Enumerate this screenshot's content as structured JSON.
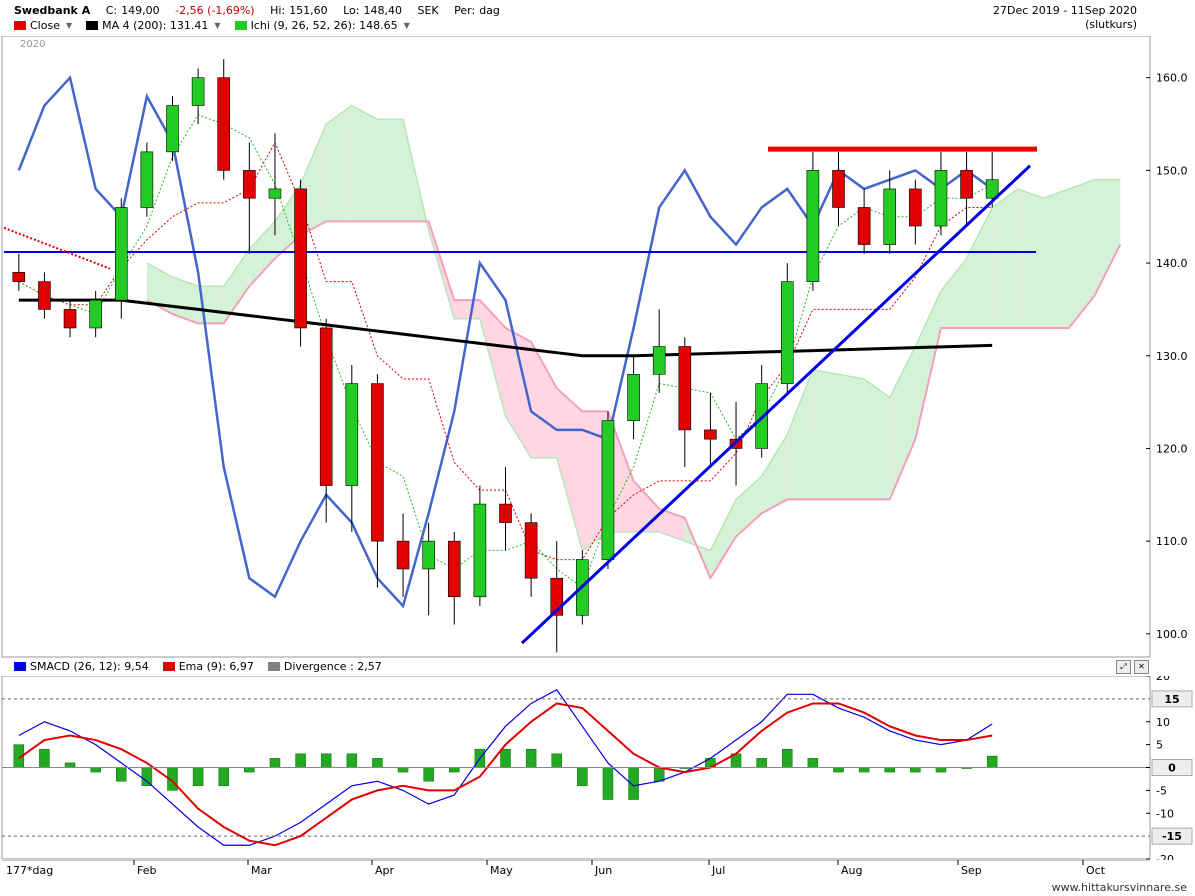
{
  "header": {
    "symbol": "Swedbank A",
    "close_label": "C:",
    "close": "149,00",
    "change": "-2,56 (-1,69%)",
    "hi_label": "Hi:",
    "hi": "151,60",
    "lo_label": "Lo:",
    "lo": "148,40",
    "currency": "SEK",
    "period_label": "Per:",
    "period": "dag",
    "date_range": "27Dec 2019 - 11Sep 2020",
    "price_type": "(slutkurs)",
    "year_label": "2020"
  },
  "legend": [
    {
      "label": "Close",
      "color": "#e00000",
      "dropdown": true
    },
    {
      "label": "MA 4 (200): 131.41",
      "color": "#000000",
      "dropdown": true
    },
    {
      "label": "Ichi (9, 26, 52, 26): 148.65",
      "color": "#22cc22",
      "dropdown": true
    }
  ],
  "macd_legend": [
    {
      "label": "SMACD (26, 12): 9,54",
      "color": "#0000e0"
    },
    {
      "label": "Ema (9): 6,97",
      "color": "#e00000"
    },
    {
      "label": "Divergence : 2,57",
      "color": "#808080"
    }
  ],
  "x_axis": {
    "period_label": "177*dag",
    "months": [
      "Feb",
      "Mar",
      "Apr",
      "May",
      "Jun",
      "Jul",
      "Aug",
      "Sep",
      "Oct"
    ]
  },
  "footer": {
    "watermark": "www.hittakursvinnare.se"
  },
  "colors": {
    "up": "#22cc22",
    "down": "#e00000",
    "ma": "#000000",
    "rsi_line": "#4466cc",
    "cloud_green": "#d6f2d6",
    "cloud_pink": "#ffd6e2",
    "trend": "#0000e0"
  },
  "chart_data": [
    {
      "type": "candlestick",
      "title": "Swedbank A",
      "y_ticks": [
        100.0,
        110.0,
        120.0,
        130.0,
        140.0,
        150.0,
        160.0
      ],
      "ylim": [
        97.5,
        164.5
      ],
      "grid": false,
      "series": [
        {
          "name": "Close",
          "ohlc_weekly": [
            [
              139,
              141,
              137,
              138
            ],
            [
              138,
              139,
              134,
              135
            ],
            [
              135,
              136,
              132,
              133
            ],
            [
              133,
              137,
              132,
              136
            ],
            [
              136,
              147,
              134,
              146
            ],
            [
              146,
              153,
              145,
              152
            ],
            [
              152,
              158,
              151,
              157
            ],
            [
              157,
              161,
              155,
              160
            ],
            [
              160,
              162,
              149,
              150
            ],
            [
              150,
              153,
              141,
              147
            ],
            [
              147,
              154,
              143,
              148
            ],
            [
              148,
              149,
              131,
              133
            ],
            [
              133,
              134,
              112,
              116
            ],
            [
              116,
              129,
              111,
              127
            ],
            [
              127,
              128,
              105,
              110
            ],
            [
              110,
              113,
              104,
              107
            ],
            [
              107,
              112,
              102,
              110
            ],
            [
              110,
              111,
              101,
              104
            ],
            [
              104,
              116,
              103,
              114
            ],
            [
              114,
              118,
              109,
              112
            ],
            [
              112,
              113,
              104,
              106
            ],
            [
              106,
              110,
              98,
              102
            ],
            [
              102,
              109,
              101,
              108
            ],
            [
              108,
              124,
              107,
              123
            ],
            [
              123,
              130,
              121,
              128
            ],
            [
              128,
              135,
              126,
              131
            ],
            [
              131,
              132,
              118,
              122
            ],
            [
              122,
              126,
              118,
              121
            ],
            [
              121,
              125,
              116,
              120
            ],
            [
              120,
              129,
              119,
              127
            ],
            [
              127,
              140,
              126,
              138
            ],
            [
              138,
              152,
              137,
              150
            ],
            [
              150,
              152,
              144,
              146
            ],
            [
              146,
              148,
              141,
              142
            ],
            [
              142,
              150,
              141,
              148
            ],
            [
              148,
              149,
              142,
              144
            ],
            [
              144,
              152,
              143,
              150
            ],
            [
              150,
              152,
              144,
              147
            ],
            [
              147,
              152,
              146,
              149
            ]
          ]
        },
        {
          "name": "MA 4 (200): 131.41"
        },
        {
          "name": "Ichi (9, 26, 52, 26): 148.65"
        }
      ],
      "horizontal_line": 141.2,
      "resistance_line": 152.3
    },
    {
      "type": "bar+line",
      "title": "SMACD (26, 12)",
      "y_ticks": [
        20,
        10,
        5.0,
        0,
        -5.0,
        -10,
        -20
      ],
      "boxed_ticks": [
        15,
        0,
        -15
      ],
      "ylim": [
        -20,
        20
      ],
      "series": [
        {
          "name": "SMACD (26, 12): 9,54",
          "values": [
            7,
            10,
            8,
            5,
            1,
            -3,
            -8,
            -13,
            -17,
            -17,
            -15,
            -12,
            -8,
            -4,
            -3,
            -5,
            -8,
            -6,
            2,
            9,
            14,
            17,
            9,
            1,
            -4,
            -3,
            -1,
            2,
            6,
            10,
            16,
            16,
            13,
            11,
            8,
            6,
            5,
            6,
            9.5
          ]
        },
        {
          "name": "Ema (9): 6,97",
          "values": [
            2,
            6,
            7,
            6,
            4,
            1,
            -3,
            -9,
            -13,
            -16,
            -17,
            -15,
            -11,
            -7,
            -5,
            -4,
            -5,
            -5,
            -2,
            5,
            10,
            14,
            13,
            8,
            3,
            0,
            -1,
            0,
            3,
            8,
            12,
            14,
            14,
            12,
            9,
            7,
            6,
            6,
            7
          ]
        },
        {
          "name": "Divergence : 2,57",
          "values": [
            5,
            4,
            1,
            -1,
            -3,
            -4,
            -5,
            -4,
            -4,
            -1,
            2,
            3,
            3,
            3,
            2,
            -1,
            -3,
            -1,
            4,
            4,
            4,
            3,
            -4,
            -7,
            -7,
            -3,
            0,
            2,
            3,
            2,
            4,
            2,
            -1,
            -1,
            -1,
            -1,
            -1,
            0,
            2.5
          ]
        }
      ]
    }
  ]
}
